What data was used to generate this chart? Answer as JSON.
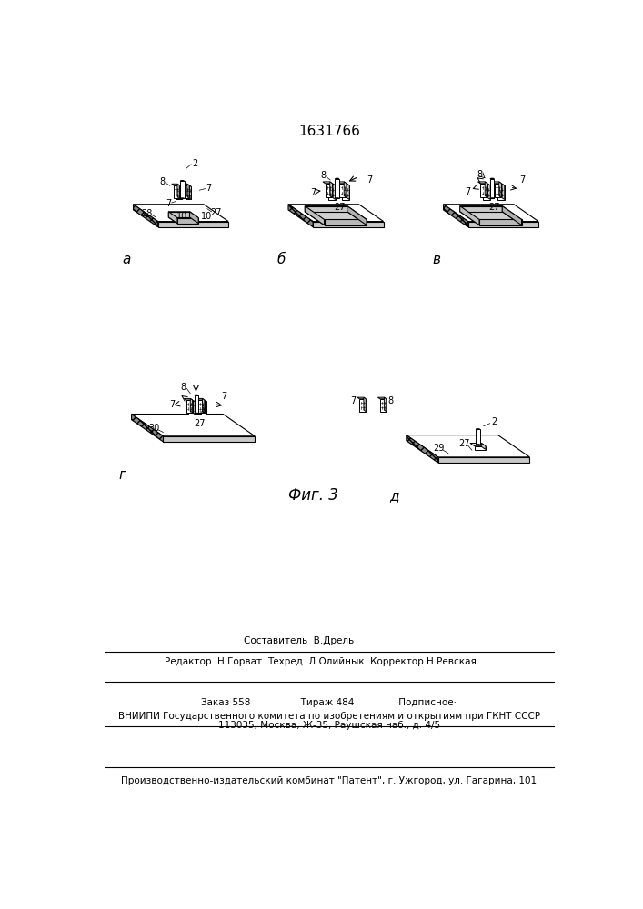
{
  "patent_number": "1631766",
  "fig_label": "Фиг. 3",
  "editor_line": "Редактор  Н.Горват",
  "composer_line": "Составитель  В.Дрель",
  "techred_line": "Техред  Л.Олийнык  Корректор Н.Ревская",
  "order_line": "Заказ 558                 Тираж 484              ·Подписное·",
  "vnipi_line1": "ВНИИПИ Государственного комитета по изобретениям и открытиям при ГКНТ СССР",
  "vnipi_line2": "113035, Москва, Ж-35, Раушская наб., д. 4/5",
  "production_line": "Производственно-издательский комбинат \"Патент\", г. Ужгород, ул. Гагарина, 101"
}
